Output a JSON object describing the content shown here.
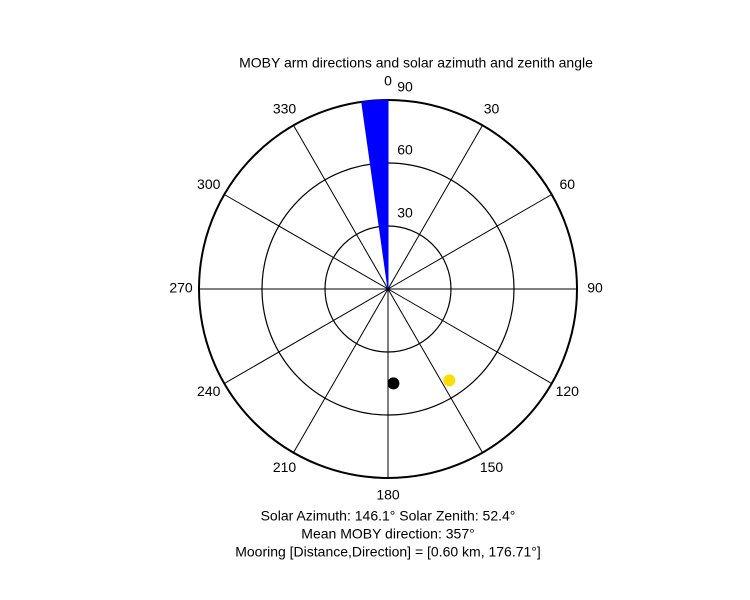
{
  "chart_data": {
    "type": "polar",
    "title": "MOBY arm directions and solar azimuth and zenith angle",
    "rlim": [
      0,
      90
    ],
    "rticks": [
      30,
      60,
      90
    ],
    "thetaticks": [
      0,
      30,
      60,
      90,
      120,
      150,
      180,
      210,
      240,
      270,
      300,
      330
    ],
    "wedge": {
      "theta": [
        352,
        360
      ],
      "r": 90,
      "color": "#0000ff"
    },
    "points": [
      {
        "theta": 146.1,
        "r": 52.4,
        "color": "#ffdd00"
      },
      {
        "theta": 176.71,
        "r": 45,
        "color": "#000000"
      }
    ],
    "annotations": [
      "Solar Azimuth: 146.1°   Solar Zenith: 52.4°",
      "Mean MOBY direction: 357°",
      "Mooring [Distance,Direction] = [0.60 km, 176.71°]"
    ]
  }
}
